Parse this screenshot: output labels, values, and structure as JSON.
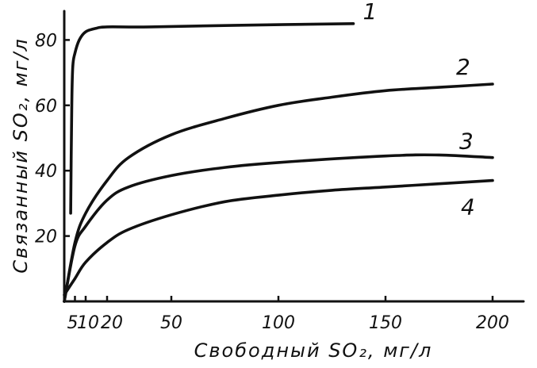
{
  "chart_data": {
    "type": "line",
    "title": "",
    "xlabel": "Свободный SO₂, мг/л",
    "ylabel": "Связанный SO₂, мг/л",
    "xlim": [
      0,
      215
    ],
    "ylim": [
      0,
      90
    ],
    "x_ticks": [
      {
        "value": 5,
        "label": "5"
      },
      {
        "value": 10,
        "label": "10"
      },
      {
        "value": 20,
        "label": "20"
      },
      {
        "value": 50,
        "label": "50"
      },
      {
        "value": 100,
        "label": "100"
      },
      {
        "value": 150,
        "label": "150"
      },
      {
        "value": 200,
        "label": "200"
      }
    ],
    "y_ticks": [
      {
        "value": 20,
        "label": "20"
      },
      {
        "value": 40,
        "label": "40"
      },
      {
        "value": 60,
        "label": "60"
      },
      {
        "value": 80,
        "label": "80"
      }
    ],
    "grid": false,
    "legend": "none",
    "series": [
      {
        "label": "1",
        "points": [
          [
            3,
            27
          ],
          [
            3.5,
            60
          ],
          [
            4,
            72
          ],
          [
            5,
            76
          ],
          [
            7,
            80
          ],
          [
            10,
            82.5
          ],
          [
            15,
            83.6
          ],
          [
            20,
            84
          ],
          [
            40,
            84
          ],
          [
            80,
            84.5
          ],
          [
            135,
            85
          ]
        ]
      },
      {
        "label": "2",
        "points": [
          [
            0,
            0
          ],
          [
            5,
            18
          ],
          [
            10,
            27
          ],
          [
            20,
            37
          ],
          [
            30,
            44
          ],
          [
            50,
            51
          ],
          [
            75,
            56
          ],
          [
            100,
            60
          ],
          [
            125,
            62.5
          ],
          [
            150,
            64.5
          ],
          [
            175,
            65.5
          ],
          [
            200,
            66.5
          ]
        ]
      },
      {
        "label": "3",
        "points": [
          [
            0,
            0
          ],
          [
            5,
            17
          ],
          [
            10,
            23
          ],
          [
            20,
            31
          ],
          [
            30,
            35
          ],
          [
            50,
            38.5
          ],
          [
            75,
            41
          ],
          [
            100,
            42.5
          ],
          [
            150,
            44.5
          ],
          [
            175,
            44.8
          ],
          [
            200,
            44
          ]
        ]
      },
      {
        "label": "4",
        "points": [
          [
            0,
            2
          ],
          [
            5,
            7
          ],
          [
            10,
            12
          ],
          [
            20,
            18
          ],
          [
            30,
            22
          ],
          [
            50,
            26.5
          ],
          [
            75,
            30.5
          ],
          [
            100,
            32.5
          ],
          [
            125,
            34
          ],
          [
            150,
            35
          ],
          [
            175,
            36
          ],
          [
            200,
            37
          ]
        ]
      }
    ]
  }
}
